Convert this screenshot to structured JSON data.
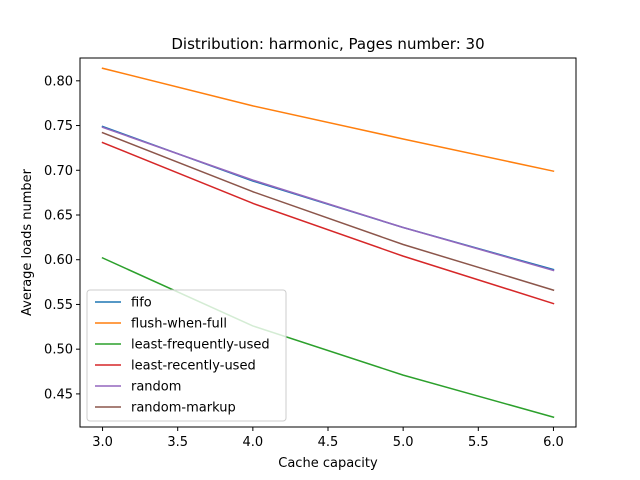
{
  "chart_data": {
    "type": "line",
    "title": "Distribution: harmonic, Pages number: 30",
    "xlabel": "Cache capacity",
    "ylabel": "Average loads number",
    "x": [
      3.0,
      4.0,
      5.0,
      6.0
    ],
    "xlim": [
      2.85,
      6.15
    ],
    "ylim": [
      0.413,
      0.8255
    ],
    "xticks": [
      "3.0",
      "3.5",
      "4.0",
      "4.5",
      "5.0",
      "5.5",
      "6.0"
    ],
    "yticks": [
      "0.45",
      "0.50",
      "0.55",
      "0.60",
      "0.65",
      "0.70",
      "0.75",
      "0.80"
    ],
    "grid": false,
    "legend_position": "lower-left",
    "series": [
      {
        "name": "fifo",
        "color": "#1f77b4",
        "values": [
          0.749,
          0.688,
          0.636,
          0.589
        ]
      },
      {
        "name": "flush-when-full",
        "color": "#ff7f0e",
        "values": [
          0.814,
          0.772,
          0.735,
          0.699
        ]
      },
      {
        "name": "least-frequently-used",
        "color": "#2ca02c",
        "values": [
          0.602,
          0.526,
          0.471,
          0.424
        ]
      },
      {
        "name": "least-recently-used",
        "color": "#d62728",
        "values": [
          0.731,
          0.663,
          0.604,
          0.551
        ]
      },
      {
        "name": "random",
        "color": "#9467bd",
        "values": [
          0.748,
          0.689,
          0.636,
          0.588
        ]
      },
      {
        "name": "random-markup",
        "color": "#8c564b",
        "values": [
          0.742,
          0.676,
          0.617,
          0.566
        ]
      }
    ]
  }
}
